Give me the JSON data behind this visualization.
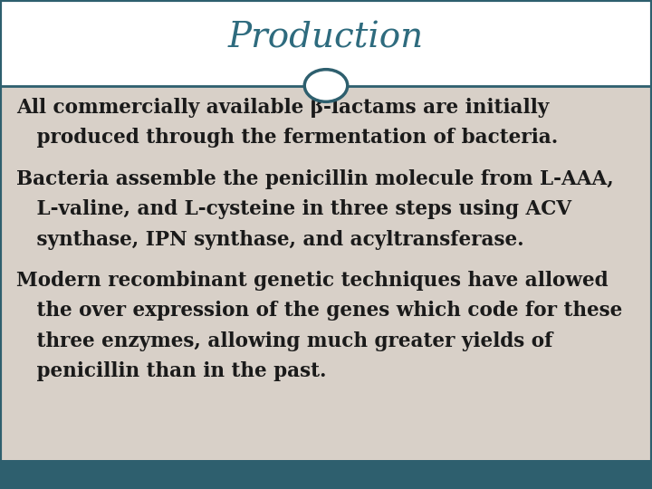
{
  "title": "Production",
  "title_color": "#2E6B7E",
  "title_fontsize": 28,
  "header_bg": "#FFFFFF",
  "body_bg": "#D8D0C8",
  "border_color": "#2E5F6E",
  "footer_color": "#2E5F6E",
  "circle_color": "#2E5F6E",
  "text_color": "#1a1a1a",
  "body_fontsize": 15.5,
  "paragraphs": [
    {
      "first_line": "All commercially available β-lactams are initially",
      "continuation": "   produced through the fermentation of bacteria."
    },
    {
      "first_line": "Bacteria assemble the penicillin molecule from L-AAA,",
      "continuation": "   L-valine, and L-cysteine in three steps using ACV\n   synthase, IPN synthase, and acyltransferase."
    },
    {
      "first_line": "Modern recombinant genetic techniques have allowed",
      "continuation": "   the over expression of the genes which code for these\n   three enzymes, allowing much greater yields of\n   penicillin than in the past."
    }
  ]
}
